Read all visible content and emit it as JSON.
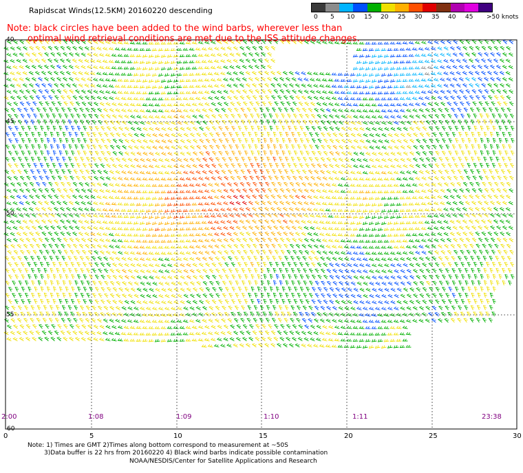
{
  "header": {
    "title": "Rapidscat Winds(12.5KM) 20160220 descending",
    "note_line1": "Note: black circles have been added to the wind barbs, wherever less than",
    "note_line2": "optimal wind retrieval conditions are met due to the ISS attitude changes."
  },
  "colorbar": {
    "labels": [
      "0",
      "5",
      "10",
      "15",
      "20",
      "25",
      "30",
      "35",
      "40",
      "45",
      ">50 knots"
    ],
    "colors": [
      "#3a3a3a",
      "#8c8c8c",
      "#00b4ff",
      "#0050ff",
      "#00b000",
      "#f0e000",
      "#ffb000",
      "#ff5000",
      "#e00000",
      "#803010",
      "#b000b0",
      "#e000e0",
      "#400080"
    ]
  },
  "map": {
    "lat_labels": [
      "40",
      "45",
      "50",
      "55",
      "60"
    ],
    "lon_labels": [
      "0",
      "5",
      "10",
      "15",
      "20",
      "25",
      "30"
    ],
    "time_labels": [
      "2:00",
      "1:08",
      "1:09",
      "1:10",
      "1:11",
      "23:38"
    ]
  },
  "footer": {
    "note1": "Note: 1) Times are GMT 2)Times along bottom correspond to measurement at ~50S",
    "note2": "3)Data buffer is 22 hrs from 20160220 4) Black wind barbs indicate possible contamination",
    "credit": "NOAA/NESDIS/Center for Satellite Applications and Research"
  }
}
